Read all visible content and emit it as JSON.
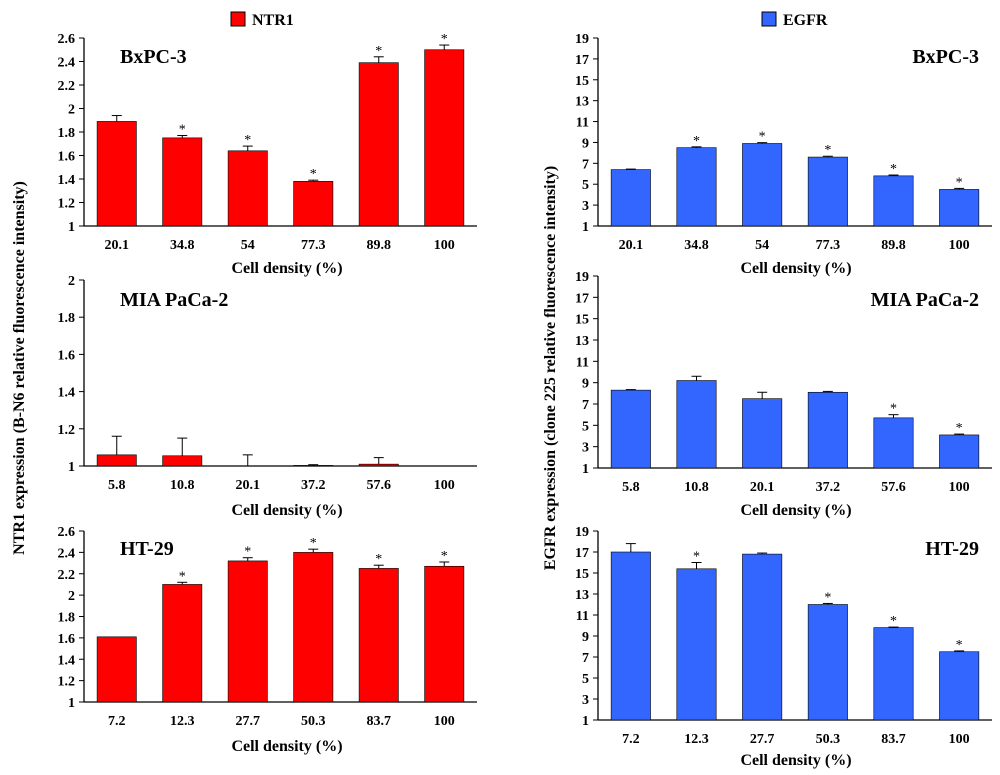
{
  "legend": {
    "ntr1": "NTR1",
    "egfr": "EGFR"
  },
  "colors": {
    "ntr1": "#ff0000",
    "egfr": "#3366ff"
  },
  "ylabels": {
    "left": "NTR1 expression (B-N6 relative fluorescence intensity)",
    "right": "EGFR expression (clone 225 relative fluorescence intensity)"
  },
  "chart_data": [
    {
      "type": "bar",
      "series_name": "NTR1",
      "cell_line": "BxPC-3",
      "categories": [
        "20.1",
        "34.8",
        "54",
        "77.3",
        "89.8",
        "100"
      ],
      "values": [
        1.89,
        1.75,
        1.64,
        1.38,
        2.39,
        2.5
      ],
      "errors": [
        0.05,
        0.02,
        0.04,
        0.01,
        0.05,
        0.04
      ],
      "significant": [
        false,
        true,
        true,
        true,
        true,
        true
      ],
      "xlabel": "Cell density (%)",
      "ylim": [
        1,
        2.6
      ],
      "ticks": [
        "1",
        "1.2",
        "1.4",
        "1.6",
        "1.8",
        "2",
        "2.2",
        "2.4",
        "2.6"
      ]
    },
    {
      "type": "bar",
      "series_name": "NTR1",
      "cell_line": "MIA PaCa-2",
      "categories": [
        "5.8",
        "10.8",
        "20.1",
        "37.2",
        "57.6",
        "100"
      ],
      "values": [
        1.06,
        1.055,
        0.99,
        1.003,
        1.01,
        0.99
      ],
      "errors": [
        0.1,
        0.095,
        0.07,
        0.004,
        0.035,
        0.01
      ],
      "significant": [
        false,
        false,
        false,
        false,
        false,
        false
      ],
      "xlabel": "Cell density (%)",
      "ylim": [
        1,
        2
      ],
      "ticks": [
        "1",
        "1.2",
        "1.4",
        "1.6",
        "1.8",
        "2"
      ]
    },
    {
      "type": "bar",
      "series_name": "NTR1",
      "cell_line": "HT-29",
      "categories": [
        "7.2",
        "12.3",
        "27.7",
        "50.3",
        "83.7",
        "100"
      ],
      "values": [
        1.61,
        2.1,
        2.32,
        2.4,
        2.25,
        2.27
      ],
      "errors": [
        0.0,
        0.02,
        0.03,
        0.03,
        0.03,
        0.04
      ],
      "significant": [
        false,
        true,
        true,
        true,
        true,
        true
      ],
      "xlabel": "Cell density (%)",
      "ylim": [
        1,
        2.6
      ],
      "ticks": [
        "1",
        "1.2",
        "1.4",
        "1.6",
        "1.8",
        "2",
        "2.2",
        "2.4",
        "2.6"
      ]
    },
    {
      "type": "bar",
      "series_name": "EGFR",
      "cell_line": "BxPC-3",
      "categories": [
        "20.1",
        "34.8",
        "54",
        "77.3",
        "89.8",
        "100"
      ],
      "values": [
        6.4,
        8.5,
        8.9,
        7.6,
        5.8,
        4.5
      ],
      "errors": [
        0.05,
        0.08,
        0.08,
        0.08,
        0.08,
        0.1
      ],
      "significant": [
        false,
        true,
        true,
        true,
        true,
        true
      ],
      "xlabel": "Cell density (%)",
      "ylim": [
        1,
        19
      ],
      "ticks": [
        "1",
        "3",
        "5",
        "7",
        "9",
        "11",
        "13",
        "15",
        "17",
        "19"
      ]
    },
    {
      "type": "bar",
      "series_name": "EGFR",
      "cell_line": "MIA PaCa-2",
      "categories": [
        "5.8",
        "10.8",
        "20.1",
        "37.2",
        "57.6",
        "100"
      ],
      "values": [
        8.3,
        9.2,
        7.5,
        8.1,
        5.7,
        4.1
      ],
      "errors": [
        0.05,
        0.4,
        0.6,
        0.08,
        0.3,
        0.08
      ],
      "significant": [
        false,
        false,
        false,
        false,
        true,
        true
      ],
      "xlabel": "Cell density (%)",
      "ylim": [
        1,
        19
      ],
      "ticks": [
        "1",
        "3",
        "5",
        "7",
        "9",
        "11",
        "13",
        "15",
        "17",
        "19"
      ]
    },
    {
      "type": "bar",
      "series_name": "EGFR",
      "cell_line": "HT-29",
      "categories": [
        "7.2",
        "12.3",
        "27.7",
        "50.3",
        "83.7",
        "100"
      ],
      "values": [
        17.0,
        15.4,
        16.8,
        12.0,
        9.8,
        7.5
      ],
      "errors": [
        0.8,
        0.6,
        0.1,
        0.1,
        0.05,
        0.08
      ],
      "significant": [
        false,
        true,
        false,
        true,
        true,
        true
      ],
      "xlabel": "Cell density (%)",
      "ylim": [
        1,
        19
      ],
      "ticks": [
        "1",
        "3",
        "5",
        "7",
        "9",
        "11",
        "13",
        "15",
        "17",
        "19"
      ]
    }
  ]
}
